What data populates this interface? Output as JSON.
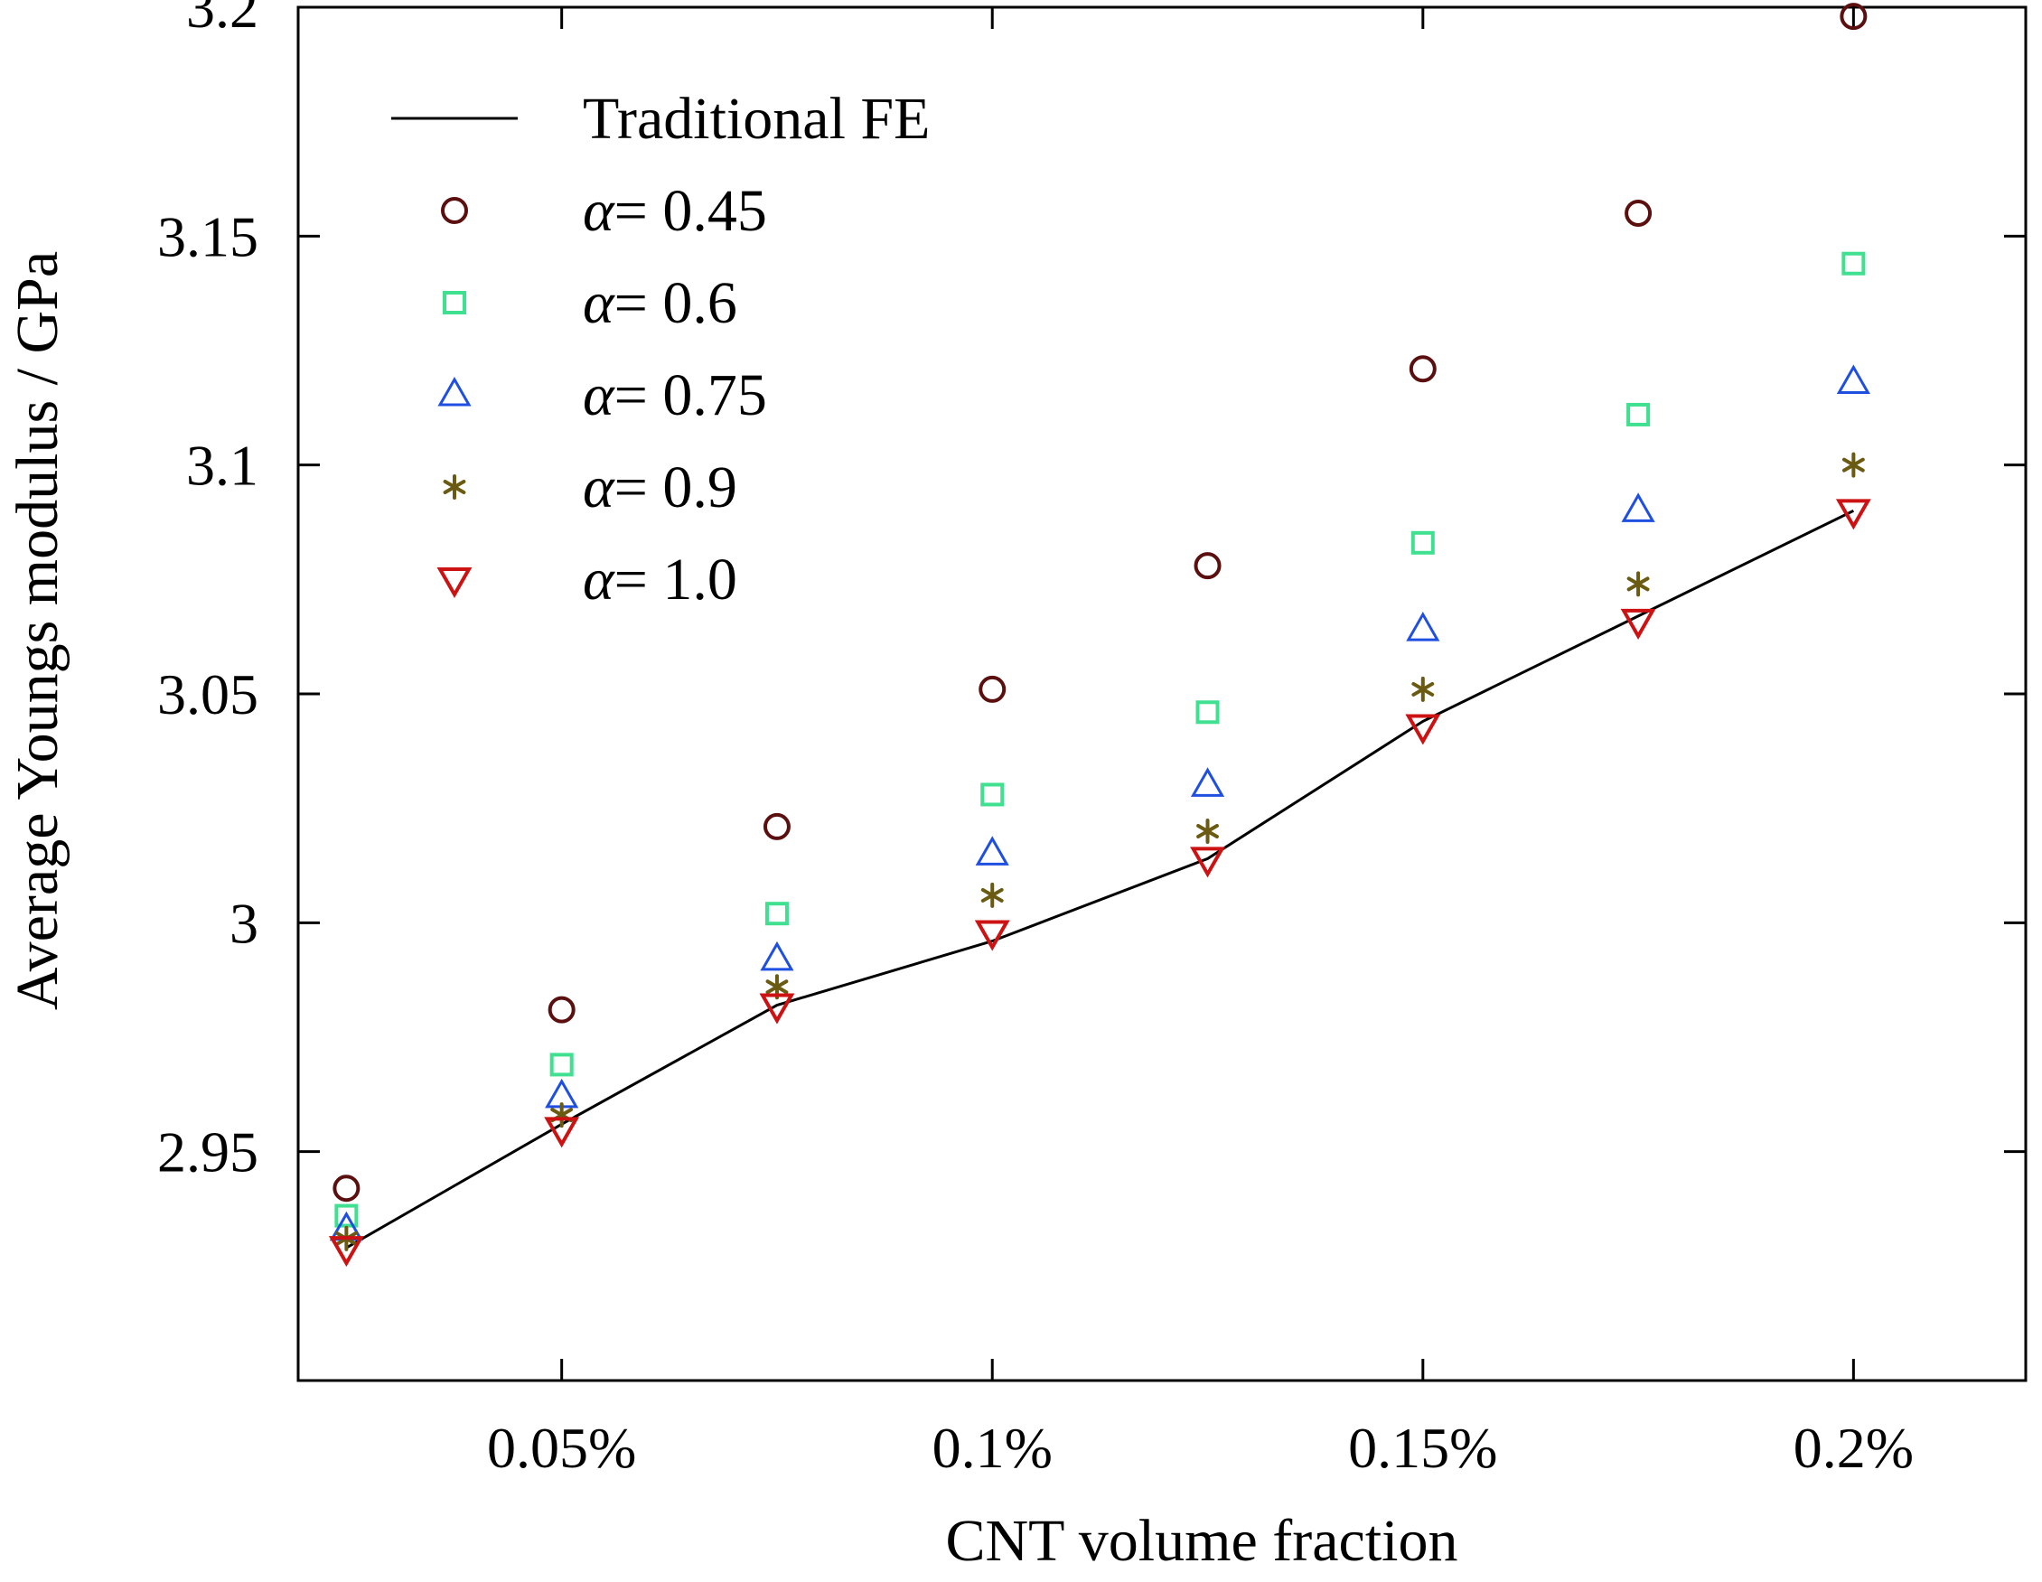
{
  "chart_data": {
    "type": "scatter",
    "title": "",
    "xlabel": "CNT volume fraction",
    "ylabel": "Average Youngs modulus / GPa",
    "xlim": [
      0.0194,
      0.22
    ],
    "ylim": [
      2.9,
      3.2
    ],
    "x_ticks": [
      0.05,
      0.1,
      0.15,
      0.2
    ],
    "x_tick_labels": [
      "0.05%",
      "0.1%",
      "0.15%",
      "0.2%"
    ],
    "y_ticks": [
      2.95,
      3.0,
      3.05,
      3.1,
      3.15,
      3.2
    ],
    "y_tick_labels": [
      "2.95",
      "3",
      "3.05",
      "3.1",
      "3.15",
      "3.2"
    ],
    "grid": false,
    "legend_position": "top-left",
    "x": [
      0.025,
      0.05,
      0.075,
      0.1,
      0.125,
      0.15,
      0.175,
      0.2
    ],
    "series": [
      {
        "name": "Traditional FE",
        "kind": "line",
        "color": "#000000",
        "values": [
          2.929,
          2.956,
          2.982,
          2.996,
          3.014,
          3.044,
          3.067,
          3.09
        ]
      },
      {
        "name": "= 0.45",
        "alpha_symbol": "α",
        "marker": "circle",
        "color": "#5c0f0f",
        "values": [
          2.942,
          2.981,
          3.021,
          3.051,
          3.078,
          3.121,
          3.155,
          3.198
        ]
      },
      {
        "name": "= 0.6",
        "alpha_symbol": "α",
        "marker": "square",
        "color": "#3fe08f",
        "values": [
          2.936,
          2.969,
          3.002,
          3.028,
          3.046,
          3.083,
          3.111,
          3.144
        ]
      },
      {
        "name": "= 0.75",
        "alpha_symbol": "α",
        "marker": "triangle-up",
        "color": "#1f4fe0",
        "values": [
          2.933,
          2.962,
          2.992,
          3.015,
          3.03,
          3.064,
          3.09,
          3.118
        ]
      },
      {
        "name": "= 0.9",
        "alpha_symbol": "α",
        "marker": "asterisk",
        "color": "#6b5a12",
        "values": [
          2.931,
          2.958,
          2.986,
          3.006,
          3.02,
          3.051,
          3.074,
          3.1
        ]
      },
      {
        "name": "= 1.0",
        "alpha_symbol": "α",
        "marker": "triangle-down",
        "color": "#cc1212",
        "values": [
          2.929,
          2.955,
          2.982,
          2.998,
          3.014,
          3.043,
          3.066,
          3.09
        ]
      }
    ]
  }
}
